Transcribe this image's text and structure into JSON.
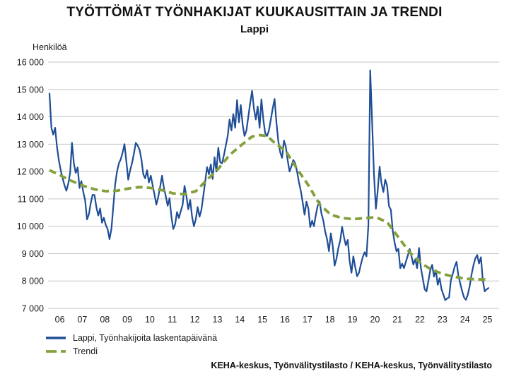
{
  "title": "TYÖTTÖMÄT TYÖNHAKIJAT KUUKAUSITTAIN JA TRENDI",
  "subtitle": "Lappi",
  "y_axis_title": "Henkilöä",
  "footer": "KEHA-keskus, Työnvälitystilasto / KEHA-keskus, Työnvälitystilasto",
  "chart_data": {
    "type": "line",
    "title": "TYÖTTÖMÄT TYÖNHAKIJAT KUUKAUSITTAIN JA TRENDI",
    "subtitle": "Lappi",
    "ylabel": "Henkilöä",
    "xlabel": "",
    "x_unit": "month",
    "x_start": "2006-01",
    "x_end": "2025-07",
    "ylim": [
      7000,
      16000
    ],
    "ytick_step": 1000,
    "ytick_labels": [
      "7 000",
      "8 000",
      "9 000",
      "10 000",
      "11 000",
      "12 000",
      "13 000",
      "14 000",
      "15 000",
      "16 000"
    ],
    "xtick_labels": [
      "06",
      "07",
      "08",
      "09",
      "10",
      "11",
      "12",
      "13",
      "14",
      "15",
      "16",
      "17",
      "18",
      "19",
      "20",
      "21",
      "22",
      "23",
      "24",
      "25"
    ],
    "grid": "horizontal",
    "grid_color": "#c6c6c6",
    "legend_position": "bottom-left",
    "series": [
      {
        "name": "Lappi, Työnhakijoita laskentapäivänä",
        "color": "#1f4e96",
        "style": "solid",
        "values": [
          14850,
          13600,
          13350,
          13600,
          12900,
          12400,
          12050,
          11750,
          11500,
          11300,
          11550,
          11950,
          13050,
          12300,
          11950,
          12150,
          11400,
          11650,
          11250,
          10950,
          10250,
          10430,
          10850,
          11150,
          11140,
          10700,
          10390,
          10650,
          10130,
          10310,
          10050,
          9890,
          9530,
          9900,
          10700,
          11530,
          12000,
          12300,
          12450,
          12700,
          13000,
          12350,
          11700,
          12050,
          12300,
          12650,
          13050,
          12950,
          12800,
          12450,
          11900,
          11750,
          12050,
          11600,
          11850,
          11500,
          11150,
          10790,
          11080,
          11430,
          11850,
          11400,
          11100,
          10750,
          11030,
          10340,
          9900,
          10080,
          10520,
          10300,
          10550,
          10790,
          11480,
          11100,
          10620,
          10960,
          10350,
          10000,
          10260,
          10700,
          10350,
          10600,
          11110,
          11620,
          12160,
          11900,
          12260,
          11730,
          12520,
          12000,
          12870,
          12340,
          12300,
          12600,
          12950,
          13300,
          13900,
          13500,
          14100,
          13600,
          14610,
          13800,
          14430,
          13700,
          13300,
          13500,
          14000,
          14500,
          14950,
          14300,
          13900,
          14380,
          13600,
          14640,
          13900,
          13400,
          13300,
          13500,
          13900,
          14300,
          14650,
          13800,
          13100,
          12700,
          12500,
          13130,
          12900,
          12400,
          12000,
          12200,
          12420,
          12300,
          12000,
          11600,
          11300,
          10870,
          10420,
          10900,
          10650,
          9970,
          10200,
          10000,
          10420,
          10750,
          10900,
          10460,
          10200,
          9800,
          9520,
          9090,
          9740,
          9300,
          8560,
          8820,
          9200,
          9480,
          9980,
          9600,
          9300,
          9500,
          8740,
          8300,
          8900,
          8500,
          8170,
          8300,
          8600,
          8870,
          9050,
          8900,
          10050,
          15700,
          13800,
          11900,
          10640,
          11300,
          12180,
          11570,
          11250,
          11700,
          11480,
          10740,
          10600,
          9830,
          9400,
          9080,
          9180,
          8470,
          8630,
          8470,
          8700,
          8920,
          9170,
          8900,
          8600,
          8800,
          8470,
          9210,
          8470,
          8100,
          7700,
          7620,
          8000,
          8390,
          8590,
          8160,
          8390,
          7860,
          8100,
          7700,
          7500,
          7300,
          7360,
          7400,
          8030,
          8270,
          8520,
          8700,
          8200,
          7900,
          7630,
          7400,
          7310,
          7500,
          7800,
          8230,
          8560,
          8820,
          8950,
          8640,
          8870,
          8040,
          7620,
          7690,
          7740
        ]
      },
      {
        "name": "Trendi",
        "color": "#84a03c",
        "style": "dashed",
        "points": [
          [
            0,
            12050
          ],
          [
            6,
            11850
          ],
          [
            12,
            11650
          ],
          [
            18,
            11480
          ],
          [
            24,
            11350
          ],
          [
            30,
            11280
          ],
          [
            36,
            11300
          ],
          [
            42,
            11380
          ],
          [
            48,
            11430
          ],
          [
            54,
            11400
          ],
          [
            60,
            11320
          ],
          [
            66,
            11200
          ],
          [
            72,
            11170
          ],
          [
            78,
            11280
          ],
          [
            84,
            11700
          ],
          [
            90,
            12100
          ],
          [
            96,
            12600
          ],
          [
            102,
            12950
          ],
          [
            108,
            13280
          ],
          [
            112,
            13330
          ],
          [
            116,
            13300
          ],
          [
            120,
            13050
          ],
          [
            126,
            12750
          ],
          [
            132,
            12100
          ],
          [
            138,
            11500
          ],
          [
            144,
            10800
          ],
          [
            150,
            10420
          ],
          [
            156,
            10300
          ],
          [
            162,
            10260
          ],
          [
            168,
            10300
          ],
          [
            174,
            10330
          ],
          [
            180,
            10150
          ],
          [
            186,
            9600
          ],
          [
            192,
            9050
          ],
          [
            198,
            8650
          ],
          [
            204,
            8400
          ],
          [
            210,
            8250
          ],
          [
            216,
            8150
          ],
          [
            222,
            8080
          ],
          [
            228,
            8060
          ],
          [
            234,
            8050
          ]
        ]
      }
    ]
  }
}
